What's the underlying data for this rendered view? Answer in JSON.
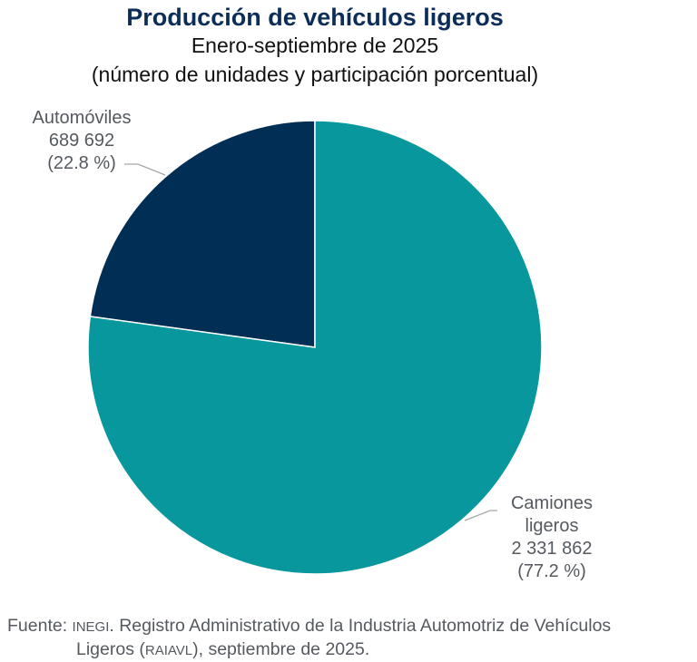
{
  "chart_data": {
    "type": "pie",
    "title": "Producción de vehículos ligeros",
    "subtitle": "Enero-septiembre de 2025",
    "subtitle2": "(número de unidades y participación porcentual)",
    "slices": [
      {
        "label": "Camiones ligeros",
        "label_line1": "Camiones",
        "label_line2": "ligeros",
        "value": 2331862,
        "value_text": "2 331 862",
        "percent": 77.2,
        "percent_text": "(77.2 %)",
        "color": "#08979c"
      },
      {
        "label": "Automóviles",
        "value": 689692,
        "value_text": "689 692",
        "percent": 22.8,
        "percent_text": "(22.8 %)",
        "color": "#002e55"
      }
    ],
    "start_angle": "12 o'clock, clockwise"
  },
  "footer": {
    "prefix": "Fuente: ",
    "org": "INEGI",
    "text1": ". Registro Administrativo de la Industria Automotriz de Vehículos",
    "text2a": "Ligeros (",
    "abbr": "RAIAVL",
    "text2b": "), septiembre de 2025."
  }
}
